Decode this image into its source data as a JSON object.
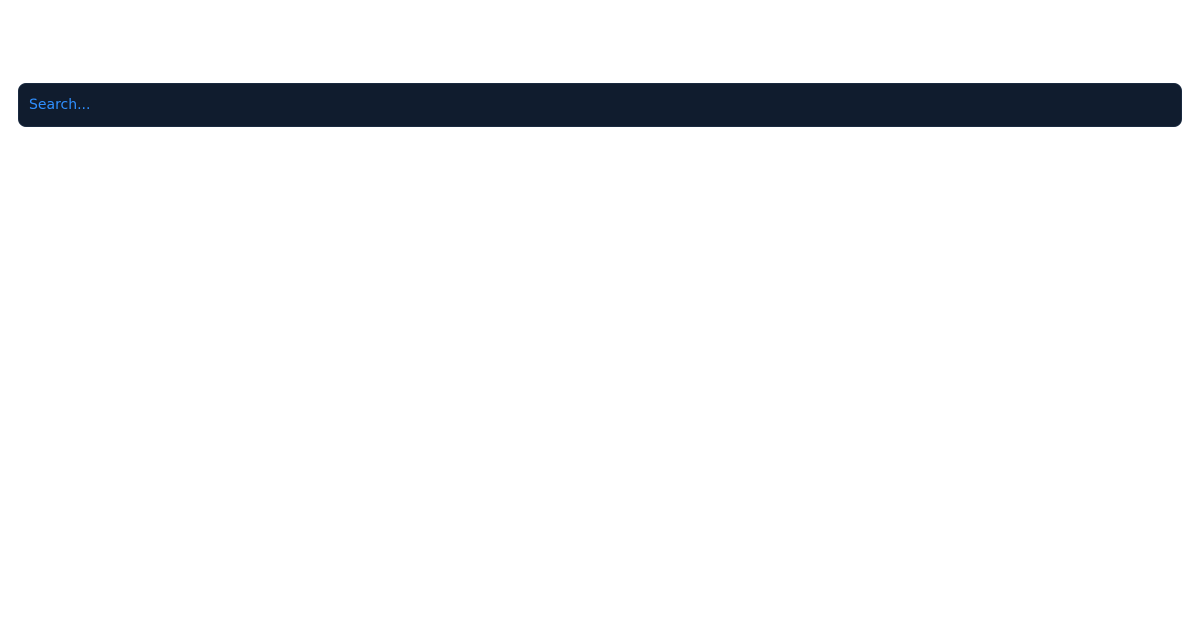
{
  "search": {
    "placeholder": "Search...",
    "value": ""
  },
  "colors": {
    "background": "#ffffff",
    "search_bar_background": "#101c2e",
    "search_text": "#2f8fff"
  }
}
